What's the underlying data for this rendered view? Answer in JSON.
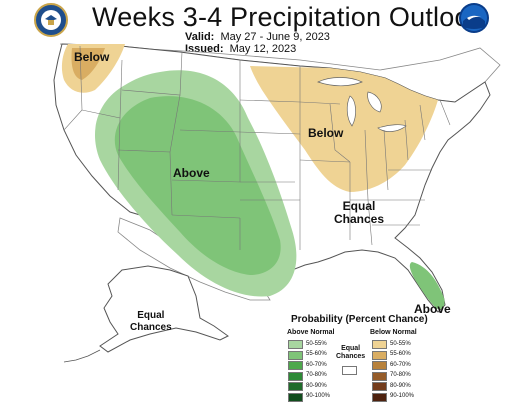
{
  "title": "Weeks 3-4 Precipitation Outlook",
  "valid_label": "Valid:",
  "valid_value": "May 27 - June 9, 2023",
  "issued_label": "Issued:",
  "issued_value": "May 12, 2023",
  "logos": {
    "left": "doc-seal",
    "right": "noaa-logo"
  },
  "labels": {
    "below_nw": "Below",
    "above_west": "Above",
    "below_mw": "Below",
    "equal_east_1": "Equal",
    "equal_east_2": "Chances",
    "equal_ak_1": "Equal",
    "equal_ak_2": "Chances",
    "above_fl": "Above"
  },
  "legend": {
    "title": "Probability (Percent Chance)",
    "above_header": "Above Normal",
    "below_header": "Below Normal",
    "equal_1": "Equal",
    "equal_2": "Chances",
    "above": [
      {
        "label": "50-55%",
        "color": "#a8d6a0"
      },
      {
        "label": "55-60%",
        "color": "#7fc478"
      },
      {
        "label": "60-70%",
        "color": "#4ea84c"
      },
      {
        "label": "70-80%",
        "color": "#2d8a36"
      },
      {
        "label": "80-90%",
        "color": "#1f6b2a"
      },
      {
        "label": "90-100%",
        "color": "#114d1d"
      }
    ],
    "below": [
      {
        "label": "50-55%",
        "color": "#efd394"
      },
      {
        "label": "55-60%",
        "color": "#d9ad62"
      },
      {
        "label": "60-70%",
        "color": "#b8823c"
      },
      {
        "label": "70-80%",
        "color": "#955c2a"
      },
      {
        "label": "80-90%",
        "color": "#733c1c"
      },
      {
        "label": "90-100%",
        "color": "#4e220f"
      }
    ]
  }
}
